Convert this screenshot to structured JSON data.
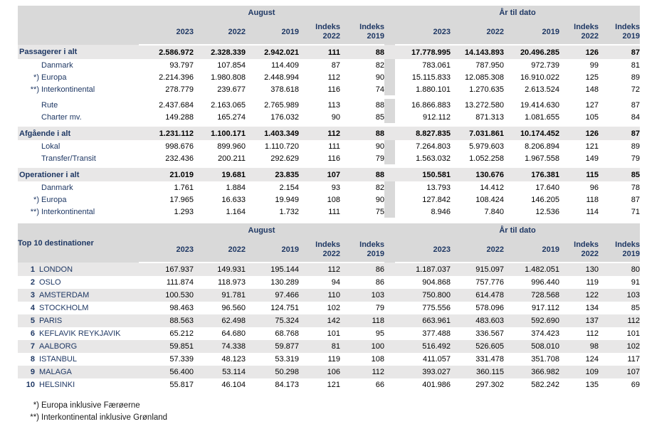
{
  "colors": {
    "navy": "#1F3864",
    "header_gray": "#D9D9D9",
    "stripe_gray": "#E8E7E7",
    "text_black": "#000000"
  },
  "col_headers": {
    "group_august": "August",
    "group_ytd": "År til dato",
    "years": [
      "2023",
      "2022",
      "2019"
    ],
    "indeks_label": "Indeks",
    "indeks_years": [
      "2022",
      "2019"
    ]
  },
  "traffic_table": {
    "rows": [
      {
        "type": "total",
        "label": "Passagerer i alt",
        "values": [
          "2.586.972",
          "2.328.339",
          "2.942.021",
          "111",
          "88",
          "17.778.995",
          "14.143.893",
          "20.496.285",
          "126",
          "87"
        ]
      },
      {
        "type": "sub",
        "marker": "",
        "label": "Danmark",
        "values": [
          "93.797",
          "107.854",
          "114.409",
          "87",
          "82",
          "783.061",
          "787.950",
          "972.739",
          "99",
          "81"
        ]
      },
      {
        "type": "sub",
        "marker": "*)",
        "label": "Europa",
        "values": [
          "2.214.396",
          "1.980.808",
          "2.448.994",
          "112",
          "90",
          "15.115.833",
          "12.085.308",
          "16.910.022",
          "125",
          "89"
        ]
      },
      {
        "type": "sub",
        "marker": "**)",
        "label": "Interkontinental",
        "values": [
          "278.779",
          "239.677",
          "378.618",
          "116",
          "74",
          "1.880.101",
          "1.270.635",
          "2.613.524",
          "148",
          "72"
        ]
      },
      {
        "type": "gap"
      },
      {
        "type": "sub",
        "marker": "",
        "label": "Rute",
        "values": [
          "2.437.684",
          "2.163.065",
          "2.765.989",
          "113",
          "88",
          "16.866.883",
          "13.272.580",
          "19.414.630",
          "127",
          "87"
        ]
      },
      {
        "type": "sub",
        "marker": "",
        "label": "Charter mv.",
        "values": [
          "149.288",
          "165.274",
          "176.032",
          "90",
          "85",
          "912.112",
          "871.313",
          "1.081.655",
          "105",
          "84"
        ]
      },
      {
        "type": "gap"
      },
      {
        "type": "total",
        "label": "Afgående i alt",
        "values": [
          "1.231.112",
          "1.100.171",
          "1.403.349",
          "112",
          "88",
          "8.827.835",
          "7.031.861",
          "10.174.452",
          "126",
          "87"
        ]
      },
      {
        "type": "sub",
        "marker": "",
        "label": "Lokal",
        "values": [
          "998.676",
          "899.960",
          "1.110.720",
          "111",
          "90",
          "7.264.803",
          "5.979.603",
          "8.206.894",
          "121",
          "89"
        ]
      },
      {
        "type": "sub",
        "marker": "",
        "label": "Transfer/Transit",
        "values": [
          "232.436",
          "200.211",
          "292.629",
          "116",
          "79",
          "1.563.032",
          "1.052.258",
          "1.967.558",
          "149",
          "79"
        ]
      },
      {
        "type": "gap"
      },
      {
        "type": "total",
        "label": "Operationer i alt",
        "values": [
          "21.019",
          "19.681",
          "23.835",
          "107",
          "88",
          "150.581",
          "130.676",
          "176.381",
          "115",
          "85"
        ]
      },
      {
        "type": "sub",
        "marker": "",
        "label": "Danmark",
        "values": [
          "1.761",
          "1.884",
          "2.154",
          "93",
          "82",
          "13.793",
          "14.412",
          "17.640",
          "96",
          "78"
        ]
      },
      {
        "type": "sub",
        "marker": "*)",
        "label": "Europa",
        "values": [
          "17.965",
          "16.633",
          "19.949",
          "108",
          "90",
          "127.842",
          "108.424",
          "146.205",
          "118",
          "87"
        ]
      },
      {
        "type": "sub",
        "marker": "**)",
        "label": "Interkontinental",
        "values": [
          "1.293",
          "1.164",
          "1.732",
          "111",
          "75",
          "8.946",
          "7.840",
          "12.536",
          "114",
          "71"
        ]
      }
    ]
  },
  "top10_table": {
    "corner_label": "Top 10 destinationer",
    "rows": [
      {
        "rank": "1",
        "label": "LONDON",
        "values": [
          "167.937",
          "149.931",
          "195.144",
          "112",
          "86",
          "1.187.037",
          "915.097",
          "1.482.051",
          "130",
          "80"
        ]
      },
      {
        "rank": "2",
        "label": "OSLO",
        "values": [
          "111.874",
          "118.973",
          "130.289",
          "94",
          "86",
          "904.868",
          "757.776",
          "996.440",
          "119",
          "91"
        ]
      },
      {
        "rank": "3",
        "label": "AMSTERDAM",
        "values": [
          "100.530",
          "91.781",
          "97.466",
          "110",
          "103",
          "750.800",
          "614.478",
          "728.568",
          "122",
          "103"
        ]
      },
      {
        "rank": "4",
        "label": "STOCKHOLM",
        "values": [
          "98.463",
          "96.560",
          "124.751",
          "102",
          "79",
          "775.556",
          "578.096",
          "917.112",
          "134",
          "85"
        ]
      },
      {
        "rank": "5",
        "label": "PARIS",
        "values": [
          "88.563",
          "62.498",
          "75.324",
          "142",
          "118",
          "663.961",
          "483.603",
          "592.690",
          "137",
          "112"
        ]
      },
      {
        "rank": "6",
        "label": "KEFLAVIK REYKJAVIK",
        "values": [
          "65.212",
          "64.680",
          "68.768",
          "101",
          "95",
          "377.488",
          "336.567",
          "374.423",
          "112",
          "101"
        ]
      },
      {
        "rank": "7",
        "label": "AALBORG",
        "values": [
          "59.851",
          "74.338",
          "59.877",
          "81",
          "100",
          "516.492",
          "526.605",
          "508.010",
          "98",
          "102"
        ]
      },
      {
        "rank": "8",
        "label": "ISTANBUL",
        "values": [
          "57.339",
          "48.123",
          "53.319",
          "119",
          "108",
          "411.057",
          "331.478",
          "351.708",
          "124",
          "117"
        ]
      },
      {
        "rank": "9",
        "label": "MALAGA",
        "values": [
          "56.400",
          "53.114",
          "50.298",
          "106",
          "112",
          "393.027",
          "360.115",
          "366.982",
          "109",
          "107"
        ]
      },
      {
        "rank": "10",
        "label": "HELSINKI",
        "values": [
          "55.817",
          "46.104",
          "84.173",
          "121",
          "66",
          "401.986",
          "297.302",
          "582.242",
          "135",
          "69"
        ]
      }
    ]
  },
  "footnotes": [
    {
      "marker": "*)",
      "text": "Europa inklusive Færøerne"
    },
    {
      "marker": "**)",
      "text": "Interkontinental inklusive Grønland"
    }
  ]
}
